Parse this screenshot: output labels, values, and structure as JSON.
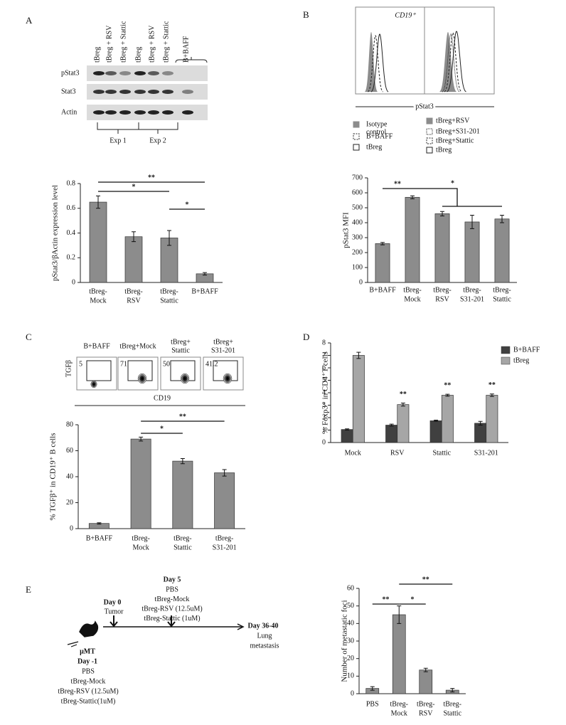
{
  "figure": {
    "A": {
      "label": "A",
      "lanes": [
        "tBreg",
        "tBreg + RSV",
        "tBreg + Stattic",
        "tBreg",
        "tBreg + RSV",
        "tBreg + Stattic",
        "B+BAFF"
      ],
      "rows": [
        "pStat3",
        "Stat3",
        "Actin"
      ],
      "groups": [
        "Exp 1",
        "Exp 2"
      ]
    },
    "B": {
      "label": "B",
      "title": "CD19⁺",
      "xlabel": "pStat3",
      "legend_left": [
        [
          "Isotype",
          "control"
        ],
        [
          "B+BAFF"
        ],
        [
          "tBreg"
        ]
      ],
      "legend_right": [
        [
          "tBreg+RSV"
        ],
        [
          "tBreg+S31-201"
        ],
        [
          "tBreg+Stattic"
        ],
        [
          "tBreg"
        ]
      ]
    },
    "C": {
      "label": "C",
      "ylabel": "TGFβ",
      "xlabel": "CD19",
      "plots": [
        {
          "title": [
            "B+BAFF"
          ],
          "value": 5
        },
        {
          "title": [
            "tBreg+Mock"
          ],
          "value": 71
        },
        {
          "title": [
            "tBreg+",
            "Stattic"
          ],
          "value": 50
        },
        {
          "title": [
            "tBreg+",
            "S31-201"
          ],
          "value": 41.2
        }
      ]
    },
    "D": {
      "label": "D"
    },
    "E": {
      "label": "E",
      "day5": {
        "title": "Day 5",
        "items": [
          "PBS",
          "tBreg-Mock",
          "tBreg-RSV (12.5uM)",
          "tBreg-Stattic (1uM)"
        ]
      },
      "day0": {
        "title": "Day 0",
        "items": [
          "Tumor"
        ]
      },
      "end": {
        "title": "Day 36-40",
        "items": [
          "Lung",
          "metastasis"
        ]
      },
      "start": {
        "title": [
          "μMT",
          "Day -1"
        ],
        "items": [
          "PBS",
          "tBreg-Mock",
          "tBreg-RSV (12.5uM)",
          "tBreg-Stattic(1uM)"
        ]
      }
    }
  },
  "chart_data": [
    {
      "type": "bar",
      "ylabel": "pStat3/βActin expression level",
      "categories": [
        [
          "tBreg-",
          "Mock"
        ],
        [
          "tBreg-",
          "RSV"
        ],
        [
          "tBreg-",
          "Stattic"
        ],
        [
          "B+BAFF"
        ]
      ],
      "series": [
        {
          "color": "#8c8c8c",
          "values": [
            0.65,
            0.37,
            0.36,
            0.07
          ],
          "errors": [
            0.05,
            0.04,
            0.06,
            0.01
          ]
        }
      ],
      "ylim": [
        0,
        0.8
      ],
      "yticks": [
        0,
        0.2,
        0.4,
        0.6,
        0.8
      ],
      "annotations": [
        "**",
        "*",
        "*"
      ]
    },
    {
      "type": "bar",
      "ylabel": "pStat3 MFI",
      "categories": [
        [
          "B+BAFF"
        ],
        [
          "tBreg-",
          "Mock"
        ],
        [
          "tBreg-",
          "RSV"
        ],
        [
          "tBreg-",
          "S31-201"
        ],
        [
          "tBreg-",
          "Stattic"
        ]
      ],
      "series": [
        {
          "color": "#8c8c8c",
          "values": [
            260,
            570,
            460,
            405,
            425
          ],
          "errors": [
            8,
            10,
            15,
            45,
            25
          ]
        }
      ],
      "ylim": [
        0,
        700
      ],
      "yticks": [
        0,
        100,
        200,
        300,
        400,
        500,
        600,
        700
      ],
      "annotations": [
        "**",
        "*"
      ]
    },
    {
      "type": "bar",
      "ylabel": "% TGFβ⁺ in CD19⁺ B cells",
      "categories": [
        [
          "B+BAFF"
        ],
        [
          "tBreg-",
          "Mock"
        ],
        [
          "tBreg-",
          "Stattic"
        ],
        [
          "tBreg-",
          "S31-201"
        ]
      ],
      "series": [
        {
          "color": "#8c8c8c",
          "values": [
            4,
            69,
            52,
            43
          ],
          "errors": [
            0.5,
            1.5,
            2,
            2.5
          ]
        }
      ],
      "ylim": [
        0,
        80
      ],
      "yticks": [
        0,
        20,
        40,
        60,
        80
      ],
      "annotations": [
        "*",
        "**"
      ]
    },
    {
      "type": "bar",
      "ylabel": "% Foxp3⁺ in CD4⁺T cells",
      "categories": [
        [
          "Mock"
        ],
        [
          "RSV"
        ],
        [
          "Stattic"
        ],
        [
          "S31-201"
        ]
      ],
      "series": [
        {
          "name": "B+BAFF",
          "color": "#404040",
          "values": [
            1.05,
            1.4,
            1.75,
            1.55
          ],
          "errors": [
            0.05,
            0.08,
            0.05,
            0.15
          ]
        },
        {
          "name": "tBreg",
          "color": "#a6a6a6",
          "values": [
            7.0,
            3.05,
            3.8,
            3.8
          ],
          "errors": [
            0.25,
            0.12,
            0.08,
            0.1
          ]
        }
      ],
      "ylim": [
        0,
        8
      ],
      "yticks": [
        0,
        1,
        2,
        3,
        4,
        5,
        6,
        7,
        8
      ],
      "annotations": [
        "**",
        "**",
        "**"
      ]
    },
    {
      "type": "bar",
      "ylabel": "Number of metastatic foci",
      "categories": [
        [
          "PBS"
        ],
        [
          "tBreg-",
          "Mock"
        ],
        [
          "tBreg-",
          "RSV"
        ],
        [
          "tBreg-",
          "Stattic"
        ]
      ],
      "series": [
        {
          "color": "#8c8c8c",
          "values": [
            3,
            45,
            13.5,
            2
          ],
          "errors": [
            1,
            5,
            1,
            1
          ]
        }
      ],
      "ylim": [
        0,
        60
      ],
      "yticks": [
        0,
        10,
        20,
        30,
        40,
        50,
        60
      ],
      "annotations": [
        "**",
        "*",
        "**"
      ]
    }
  ]
}
